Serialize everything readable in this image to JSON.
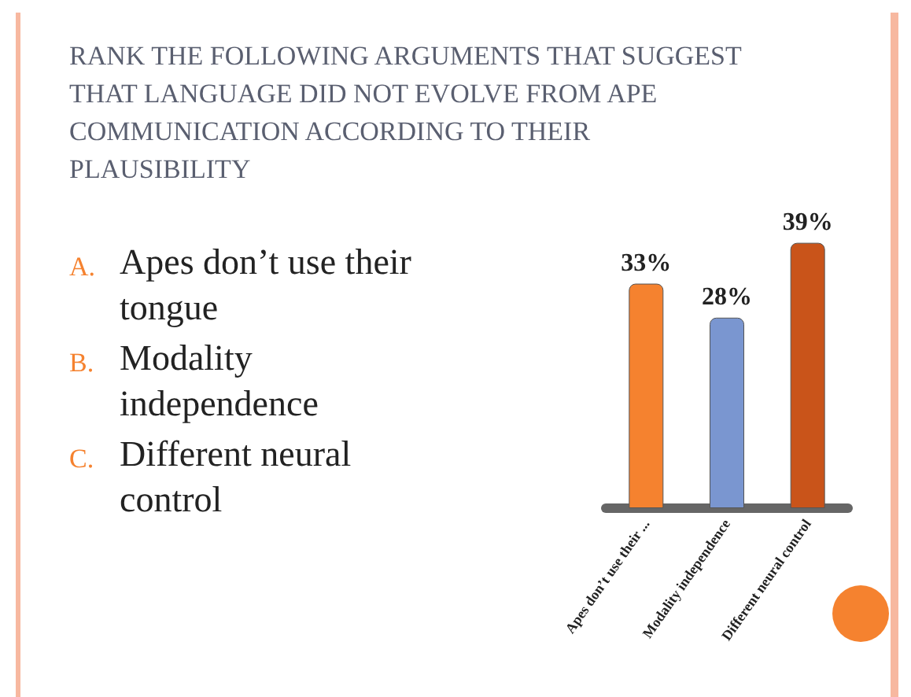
{
  "chart_data": {
    "type": "bar",
    "title": "RANK THE FOLLOWING ARGUMENTS THAT SUGGEST THAT LANGUAGE DID NOT EVOLVE FROM APE COMMUNICATION ACCORDING TO THEIR PLAUSIBILITY",
    "categories": [
      "Apes don’t use their ...",
      "Modality independence",
      "Different neural control"
    ],
    "values": [
      33,
      28,
      39
    ],
    "colors": [
      "#f5822f",
      "#7a96d0",
      "#c9541a"
    ],
    "value_labels": [
      "33%",
      "28%",
      "39%"
    ],
    "tick_labels": "x",
    "annotations": [
      "A. Apes don’t use their tongue",
      "B. Modality independence",
      "C. Different neural control"
    ]
  }
}
